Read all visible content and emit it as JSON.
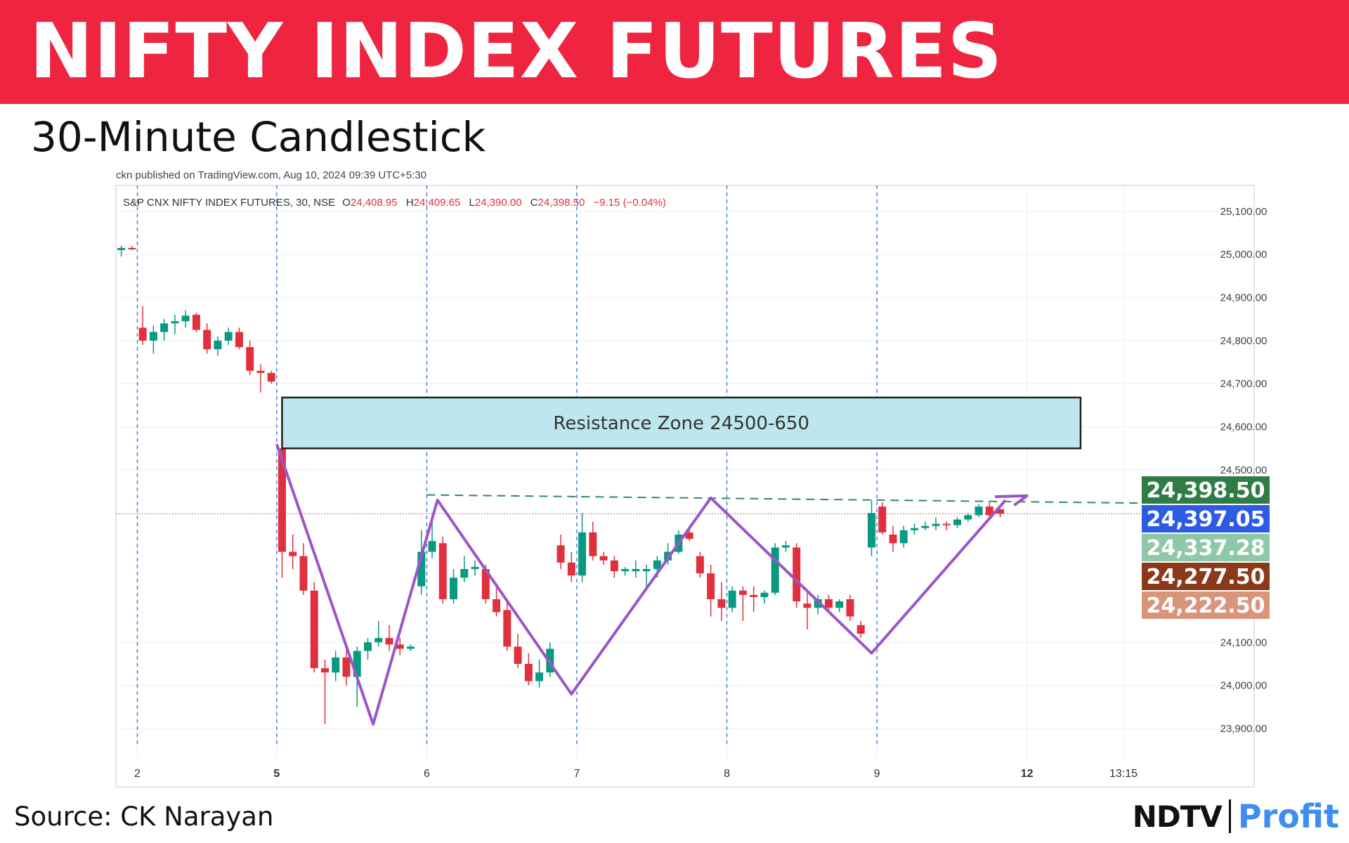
{
  "header": {
    "title": "NIFTY INDEX FUTURES",
    "subtitle": "30-Minute Candlestick"
  },
  "footer": {
    "source": "Source: CK Narayan",
    "logo_ndtv": "NDTV",
    "logo_profit": "Profit"
  },
  "chart_data": {
    "type": "candlestick",
    "published_note": "ckn published on TradingView.com, Aug 10, 2024 09:39 UTC+5:30",
    "instrument_label": "S&P CNX NIFTY INDEX FUTURES, 30, NSE",
    "ohlc_legend": {
      "o_label": "O",
      "o_value": "24,408.95",
      "h_label": "H",
      "h_value": "24,409.65",
      "l_label": "L",
      "l_value": "24,390.00",
      "c_label": "C",
      "c_value": "24,398.50",
      "change": "−9.15 (−0.04%)"
    },
    "ylim": [
      23830,
      25160
    ],
    "y_ticks": [
      {
        "value": 25100,
        "label": "25,100.00"
      },
      {
        "value": 25000,
        "label": "25,000.00"
      },
      {
        "value": 24900,
        "label": "24,900.00"
      },
      {
        "value": 24800,
        "label": "24,800.00"
      },
      {
        "value": 24700,
        "label": "24,700.00"
      },
      {
        "value": 24600,
        "label": "24,600.00"
      },
      {
        "value": 24500,
        "label": "24,500.00"
      },
      {
        "value": 24100,
        "label": "24,100.00"
      },
      {
        "value": 24000,
        "label": "24,000.00"
      },
      {
        "value": 23900,
        "label": "23,900.00"
      }
    ],
    "x_ticks": [
      {
        "bar": 1.5,
        "label": "2",
        "bold": false
      },
      {
        "bar": 14.5,
        "label": "5",
        "bold": true
      },
      {
        "bar": 28.5,
        "label": "6",
        "bold": false
      },
      {
        "bar": 42.5,
        "label": "7",
        "bold": false
      },
      {
        "bar": 56.5,
        "label": "8",
        "bold": false
      },
      {
        "bar": 70.5,
        "label": "9",
        "bold": false
      },
      {
        "bar": 84.5,
        "label": "12",
        "bold": true
      },
      {
        "bar": 93.5,
        "label": "13:15",
        "bold": false
      }
    ],
    "session_separators": [
      1.5,
      14.5,
      28.5,
      42.5,
      56.5,
      70.5
    ],
    "bar_count": 98,
    "colors": {
      "up": "#089981",
      "down": "#e0303d",
      "pattern": "#9c55c8",
      "zone_fill": "#bde6ee",
      "zone_border": "#222222"
    },
    "candles": [
      {
        "o": 25010,
        "h": 25020,
        "l": 24995,
        "c": 25015
      },
      {
        "o": 25015,
        "h": 25020,
        "l": 25010,
        "c": 25013
      },
      {
        "o": 24830,
        "h": 24880,
        "l": 24790,
        "c": 24800
      },
      {
        "o": 24800,
        "h": 24835,
        "l": 24770,
        "c": 24820
      },
      {
        "o": 24820,
        "h": 24850,
        "l": 24800,
        "c": 24840
      },
      {
        "o": 24840,
        "h": 24860,
        "l": 24815,
        "c": 24845
      },
      {
        "o": 24845,
        "h": 24870,
        "l": 24830,
        "c": 24858
      },
      {
        "o": 24860,
        "h": 24865,
        "l": 24820,
        "c": 24825
      },
      {
        "o": 24825,
        "h": 24840,
        "l": 24770,
        "c": 24780
      },
      {
        "o": 24780,
        "h": 24810,
        "l": 24765,
        "c": 24800
      },
      {
        "o": 24800,
        "h": 24830,
        "l": 24790,
        "c": 24820
      },
      {
        "o": 24820,
        "h": 24830,
        "l": 24780,
        "c": 24785
      },
      {
        "o": 24785,
        "h": 24800,
        "l": 24720,
        "c": 24730
      },
      {
        "o": 24730,
        "h": 24745,
        "l": 24680,
        "c": 24725
      },
      {
        "o": 24725,
        "h": 24730,
        "l": 24700,
        "c": 24705
      },
      {
        "o": 24550,
        "h": 24560,
        "l": 24250,
        "c": 24310
      },
      {
        "o": 24310,
        "h": 24350,
        "l": 24270,
        "c": 24300
      },
      {
        "o": 24300,
        "h": 24330,
        "l": 24210,
        "c": 24220
      },
      {
        "o": 24220,
        "h": 24240,
        "l": 24030,
        "c": 24040
      },
      {
        "o": 24040,
        "h": 24060,
        "l": 23910,
        "c": 24030
      },
      {
        "o": 24030,
        "h": 24080,
        "l": 24010,
        "c": 24065
      },
      {
        "o": 24065,
        "h": 24090,
        "l": 24000,
        "c": 24020
      },
      {
        "o": 24020,
        "h": 24090,
        "l": 23950,
        "c": 24080
      },
      {
        "o": 24080,
        "h": 24110,
        "l": 24060,
        "c": 24100
      },
      {
        "o": 24100,
        "h": 24150,
        "l": 24090,
        "c": 24110
      },
      {
        "o": 24110,
        "h": 24140,
        "l": 24080,
        "c": 24095
      },
      {
        "o": 24095,
        "h": 24110,
        "l": 24070,
        "c": 24085
      },
      {
        "o": 24085,
        "h": 24095,
        "l": 24080,
        "c": 24090
      },
      {
        "o": 24230,
        "h": 24360,
        "l": 24210,
        "c": 24310
      },
      {
        "o": 24310,
        "h": 24390,
        "l": 24295,
        "c": 24335
      },
      {
        "o": 24330,
        "h": 24345,
        "l": 24190,
        "c": 24200
      },
      {
        "o": 24200,
        "h": 24270,
        "l": 24190,
        "c": 24250
      },
      {
        "o": 24250,
        "h": 24300,
        "l": 24240,
        "c": 24270
      },
      {
        "o": 24270,
        "h": 24290,
        "l": 24255,
        "c": 24275
      },
      {
        "o": 24270,
        "h": 24280,
        "l": 24190,
        "c": 24200
      },
      {
        "o": 24200,
        "h": 24230,
        "l": 24160,
        "c": 24170
      },
      {
        "o": 24175,
        "h": 24200,
        "l": 24080,
        "c": 24090
      },
      {
        "o": 24090,
        "h": 24120,
        "l": 24040,
        "c": 24050
      },
      {
        "o": 24050,
        "h": 24075,
        "l": 24000,
        "c": 24010
      },
      {
        "o": 24010,
        "h": 24060,
        "l": 23995,
        "c": 24030
      },
      {
        "o": 24030,
        "h": 24100,
        "l": 24020,
        "c": 24085
      },
      {
        "o": 24325,
        "h": 24350,
        "l": 24270,
        "c": 24285
      },
      {
        "o": 24285,
        "h": 24310,
        "l": 24240,
        "c": 24255
      },
      {
        "o": 24255,
        "h": 24400,
        "l": 24240,
        "c": 24355
      },
      {
        "o": 24355,
        "h": 24380,
        "l": 24290,
        "c": 24300
      },
      {
        "o": 24300,
        "h": 24310,
        "l": 24280,
        "c": 24290
      },
      {
        "o": 24290,
        "h": 24300,
        "l": 24250,
        "c": 24265
      },
      {
        "o": 24265,
        "h": 24275,
        "l": 24255,
        "c": 24270
      },
      {
        "o": 24265,
        "h": 24290,
        "l": 24250,
        "c": 24270
      },
      {
        "o": 24265,
        "h": 24280,
        "l": 24220,
        "c": 24270
      },
      {
        "o": 24270,
        "h": 24300,
        "l": 24250,
        "c": 24290
      },
      {
        "o": 24290,
        "h": 24330,
        "l": 24280,
        "c": 24310
      },
      {
        "o": 24310,
        "h": 24360,
        "l": 24305,
        "c": 24350
      },
      {
        "o": 24355,
        "h": 24370,
        "l": 24335,
        "c": 24340
      },
      {
        "o": 24300,
        "h": 24310,
        "l": 24250,
        "c": 24260
      },
      {
        "o": 24260,
        "h": 24280,
        "l": 24160,
        "c": 24200
      },
      {
        "o": 24200,
        "h": 24240,
        "l": 24150,
        "c": 24180
      },
      {
        "o": 24180,
        "h": 24230,
        "l": 24170,
        "c": 24220
      },
      {
        "o": 24220,
        "h": 24230,
        "l": 24150,
        "c": 24210
      },
      {
        "o": 24210,
        "h": 24230,
        "l": 24170,
        "c": 24205
      },
      {
        "o": 24205,
        "h": 24220,
        "l": 24190,
        "c": 24215
      },
      {
        "o": 24215,
        "h": 24330,
        "l": 24210,
        "c": 24320
      },
      {
        "o": 24320,
        "h": 24335,
        "l": 24310,
        "c": 24325
      },
      {
        "o": 24320,
        "h": 24330,
        "l": 24180,
        "c": 24195
      },
      {
        "o": 24190,
        "h": 24220,
        "l": 24130,
        "c": 24180
      },
      {
        "o": 24180,
        "h": 24210,
        "l": 24165,
        "c": 24200
      },
      {
        "o": 24200,
        "h": 24210,
        "l": 24170,
        "c": 24180
      },
      {
        "o": 24180,
        "h": 24200,
        "l": 24170,
        "c": 24195
      },
      {
        "o": 24200,
        "h": 24210,
        "l": 24150,
        "c": 24160
      },
      {
        "o": 24140,
        "h": 24150,
        "l": 24110,
        "c": 24120
      },
      {
        "o": 24320,
        "h": 24430,
        "l": 24300,
        "c": 24400
      },
      {
        "o": 24415,
        "h": 24425,
        "l": 24350,
        "c": 24355
      },
      {
        "o": 24350,
        "h": 24370,
        "l": 24310,
        "c": 24330
      },
      {
        "o": 24330,
        "h": 24370,
        "l": 24320,
        "c": 24360
      },
      {
        "o": 24360,
        "h": 24375,
        "l": 24350,
        "c": 24365
      },
      {
        "o": 24365,
        "h": 24380,
        "l": 24360,
        "c": 24370
      },
      {
        "o": 24370,
        "h": 24390,
        "l": 24360,
        "c": 24375
      },
      {
        "o": 24375,
        "h": 24380,
        "l": 24360,
        "c": 24372
      },
      {
        "o": 24372,
        "h": 24390,
        "l": 24365,
        "c": 24385
      },
      {
        "o": 24385,
        "h": 24400,
        "l": 24380,
        "c": 24395
      },
      {
        "o": 24395,
        "h": 24420,
        "l": 24390,
        "c": 24415
      },
      {
        "o": 24415,
        "h": 24425,
        "l": 24390,
        "c": 24395
      },
      {
        "o": 24408.95,
        "h": 24409.65,
        "l": 24390.0,
        "c": 24398.5
      }
    ],
    "pattern_line": [
      {
        "bar": 14.5,
        "price": 24560
      },
      {
        "bar": 23.5,
        "price": 23910
      },
      {
        "bar": 29.5,
        "price": 24430
      },
      {
        "bar": 42.0,
        "price": 23980
      },
      {
        "bar": 55.0,
        "price": 24435
      },
      {
        "bar": 70.0,
        "price": 24075
      },
      {
        "bar": 82.5,
        "price": 24430
      }
    ],
    "pattern_arrow": [
      {
        "bar": 81.5,
        "price": 24438
      },
      {
        "bar": 84.5,
        "price": 24440
      },
      {
        "bar": 83.3,
        "price": 24418
      }
    ],
    "dashed_level": {
      "bar_start": 28.5,
      "bar_end": 99,
      "price_start": 24442,
      "price_end": 24423
    },
    "last_price_line": 24398.5,
    "resistance_zone": {
      "label": "Resistance Zone 24500-650",
      "bar_start": 15.0,
      "bar_end": 89.5,
      "price_low": 24550,
      "price_high": 24668
    },
    "price_tags": [
      {
        "label": "24,398.50",
        "color": "#2e7d45"
      },
      {
        "label": "24,397.05",
        "color": "#2d5be3"
      },
      {
        "label": "24,337.28",
        "color": "#8fc8a6"
      },
      {
        "label": "24,277.50",
        "color": "#8a3a1a"
      },
      {
        "label": "24,222.50",
        "color": "#d9957a"
      }
    ]
  }
}
